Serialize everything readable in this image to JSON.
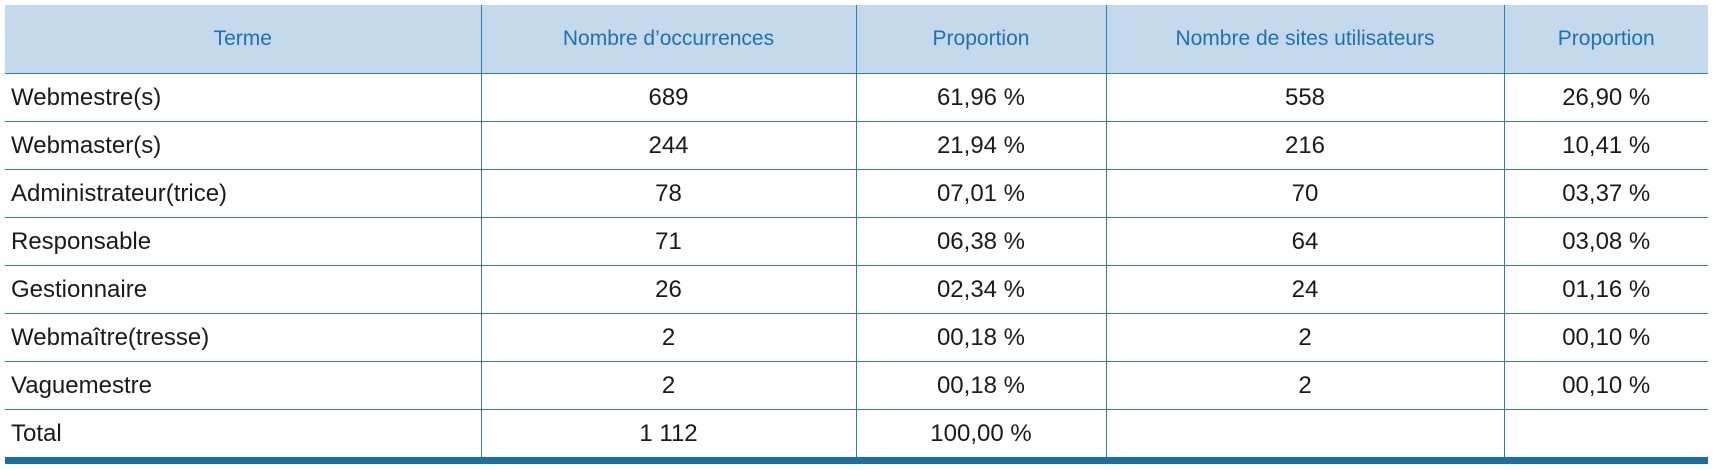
{
  "table": {
    "header": [
      "Terme",
      "Nombre d’occurrences",
      "Proportion",
      "Nombre de sites utilisateurs",
      "Proportion"
    ],
    "rows": [
      [
        "Webmestre(s)",
        "689",
        "61,96 %",
        "558",
        "26,90 %"
      ],
      [
        "Webmaster(s)",
        "244",
        "21,94 %",
        "216",
        "10,41 %"
      ],
      [
        "Administrateur(trice)",
        "78",
        "07,01 %",
        "70",
        "03,37 %"
      ],
      [
        "Responsable",
        "71",
        "06,38 %",
        "64",
        "03,08 %"
      ],
      [
        "Gestionnaire",
        "26",
        "02,34 %",
        "24",
        "01,16 %"
      ],
      [
        "Webmaître(tresse)",
        "2",
        "00,18 %",
        "2",
        "00,10 %"
      ],
      [
        "Vaguemestre",
        "2",
        "00,18 %",
        "2",
        "00,10 %"
      ],
      [
        "Total",
        "1 112",
        "100,00 %"
      ]
    ]
  }
}
